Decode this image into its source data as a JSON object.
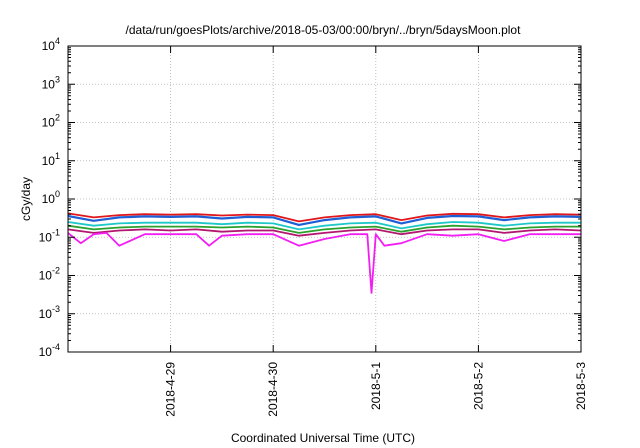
{
  "chart_data": {
    "type": "line",
    "title": "/data/run/goesPlots/archive/2018-05-03/00:00/bryn/../bryn/5daysMoon.plot",
    "xlabel": "Coordinated Universal Time (UTC)",
    "ylabel": "cGy/day",
    "yscale": "log",
    "ylim": [
      0.0001,
      10000
    ],
    "xlim": [
      "2018-04-28T00:00",
      "2018-05-03T00:00"
    ],
    "grid": true,
    "legend": "none",
    "x_tick_labels": [
      "2018-4-29",
      "2018-4-30",
      "2018-5-1",
      "2018-5-2",
      "2018-5-3"
    ],
    "y_ticks": [
      {
        "base": "10",
        "exp": "-4"
      },
      {
        "base": "10",
        "exp": "-3"
      },
      {
        "base": "10",
        "exp": "-2"
      },
      {
        "base": "10",
        "exp": "-1"
      },
      {
        "base": "10",
        "exp": "0"
      },
      {
        "base": "10",
        "exp": "1"
      },
      {
        "base": "10",
        "exp": "2"
      },
      {
        "base": "10",
        "exp": "3"
      },
      {
        "base": "10",
        "exp": "4"
      }
    ],
    "series": [
      {
        "color": "#e0161b",
        "x": [
          "2018-04-28T00:00",
          "2018-04-28T06:00",
          "2018-04-28T12:00",
          "2018-04-28T18:00",
          "2018-04-29T00:00",
          "2018-04-29T06:00",
          "2018-04-29T12:00",
          "2018-04-29T18:00",
          "2018-04-30T00:00",
          "2018-04-30T06:00",
          "2018-04-30T12:00",
          "2018-04-30T18:00",
          "2018-05-01T00:00",
          "2018-05-01T06:00",
          "2018-05-01T12:00",
          "2018-05-01T18:00",
          "2018-05-02T00:00",
          "2018-05-02T06:00",
          "2018-05-02T12:00",
          "2018-05-02T18:00",
          "2018-05-03T00:00"
        ],
        "y": [
          0.42,
          0.33,
          0.38,
          0.4,
          0.39,
          0.4,
          0.37,
          0.39,
          0.38,
          0.26,
          0.33,
          0.38,
          0.4,
          0.28,
          0.37,
          0.41,
          0.4,
          0.33,
          0.38,
          0.4,
          0.39
        ]
      },
      {
        "color": "#1f5fd6",
        "x": [
          "2018-04-28T00:00",
          "2018-04-28T06:00",
          "2018-04-28T12:00",
          "2018-04-28T18:00",
          "2018-04-29T00:00",
          "2018-04-29T06:00",
          "2018-04-29T12:00",
          "2018-04-29T18:00",
          "2018-04-30T00:00",
          "2018-04-30T06:00",
          "2018-04-30T12:00",
          "2018-04-30T18:00",
          "2018-05-01T00:00",
          "2018-05-01T06:00",
          "2018-05-01T12:00",
          "2018-05-01T18:00",
          "2018-05-02T00:00",
          "2018-05-02T06:00",
          "2018-05-02T12:00",
          "2018-05-02T18:00",
          "2018-05-03T00:00"
        ],
        "y": [
          0.36,
          0.27,
          0.33,
          0.35,
          0.34,
          0.35,
          0.31,
          0.34,
          0.33,
          0.21,
          0.28,
          0.33,
          0.35,
          0.23,
          0.32,
          0.36,
          0.35,
          0.28,
          0.33,
          0.35,
          0.34
        ]
      },
      {
        "color": "#1ec8c8",
        "x": [
          "2018-04-28T00:00",
          "2018-04-28T06:00",
          "2018-04-28T12:00",
          "2018-04-28T18:00",
          "2018-04-29T00:00",
          "2018-04-29T06:00",
          "2018-04-29T12:00",
          "2018-04-29T18:00",
          "2018-04-30T00:00",
          "2018-04-30T06:00",
          "2018-04-30T12:00",
          "2018-04-30T18:00",
          "2018-05-01T00:00",
          "2018-05-01T06:00",
          "2018-05-01T12:00",
          "2018-05-01T18:00",
          "2018-05-02T00:00",
          "2018-05-02T06:00",
          "2018-05-02T12:00",
          "2018-05-02T18:00",
          "2018-05-03T00:00"
        ],
        "y": [
          0.25,
          0.2,
          0.23,
          0.24,
          0.24,
          0.24,
          0.22,
          0.24,
          0.23,
          0.16,
          0.2,
          0.23,
          0.24,
          0.17,
          0.22,
          0.25,
          0.24,
          0.2,
          0.23,
          0.24,
          0.24
        ]
      },
      {
        "color": "#2ca02c",
        "x": [
          "2018-04-28T00:00",
          "2018-04-28T06:00",
          "2018-04-28T12:00",
          "2018-04-28T18:00",
          "2018-04-29T00:00",
          "2018-04-29T06:00",
          "2018-04-29T12:00",
          "2018-04-29T18:00",
          "2018-04-30T00:00",
          "2018-04-30T06:00",
          "2018-04-30T12:00",
          "2018-04-30T18:00",
          "2018-05-01T00:00",
          "2018-05-01T06:00",
          "2018-05-01T12:00",
          "2018-05-01T18:00",
          "2018-05-02T00:00",
          "2018-05-02T06:00",
          "2018-05-02T12:00",
          "2018-05-02T18:00",
          "2018-05-03T00:00"
        ],
        "y": [
          0.2,
          0.16,
          0.18,
          0.19,
          0.19,
          0.19,
          0.18,
          0.19,
          0.18,
          0.13,
          0.16,
          0.18,
          0.19,
          0.14,
          0.18,
          0.2,
          0.19,
          0.16,
          0.18,
          0.19,
          0.19
        ]
      },
      {
        "color": "#b2166e",
        "x": [
          "2018-04-28T00:00",
          "2018-04-28T06:00",
          "2018-04-28T12:00",
          "2018-04-28T18:00",
          "2018-04-29T00:00",
          "2018-04-29T06:00",
          "2018-04-29T12:00",
          "2018-04-29T18:00",
          "2018-04-30T00:00",
          "2018-04-30T06:00",
          "2018-04-30T12:00",
          "2018-04-30T18:00",
          "2018-05-01T00:00",
          "2018-05-01T06:00",
          "2018-05-01T12:00",
          "2018-05-01T18:00",
          "2018-05-02T00:00",
          "2018-05-02T06:00",
          "2018-05-02T12:00",
          "2018-05-02T18:00",
          "2018-05-03T00:00"
        ],
        "y": [
          0.16,
          0.13,
          0.15,
          0.16,
          0.15,
          0.16,
          0.14,
          0.15,
          0.15,
          0.11,
          0.13,
          0.15,
          0.16,
          0.12,
          0.15,
          0.16,
          0.16,
          0.13,
          0.15,
          0.16,
          0.15
        ]
      },
      {
        "color": "#f21ff2",
        "x": [
          "2018-04-28T00:00",
          "2018-04-28T03:00",
          "2018-04-28T06:00",
          "2018-04-28T09:00",
          "2018-04-28T12:00",
          "2018-04-28T18:00",
          "2018-04-29T00:00",
          "2018-04-29T06:00",
          "2018-04-29T09:00",
          "2018-04-29T12:00",
          "2018-04-29T18:00",
          "2018-04-30T00:00",
          "2018-04-30T06:00",
          "2018-04-30T12:00",
          "2018-04-30T18:00",
          "2018-04-30T22:00",
          "2018-04-30T23:00",
          "2018-05-01T00:00",
          "2018-05-01T02:00",
          "2018-05-01T06:00",
          "2018-05-01T12:00",
          "2018-05-01T18:00",
          "2018-05-02T00:00",
          "2018-05-02T06:00",
          "2018-05-02T12:00",
          "2018-05-02T18:00",
          "2018-05-03T00:00"
        ],
        "y": [
          0.13,
          0.07,
          0.12,
          0.13,
          0.06,
          0.12,
          0.12,
          0.12,
          0.06,
          0.11,
          0.12,
          0.12,
          0.06,
          0.09,
          0.12,
          0.12,
          0.0035,
          0.12,
          0.06,
          0.07,
          0.12,
          0.11,
          0.12,
          0.08,
          0.12,
          0.12,
          0.12
        ]
      }
    ]
  }
}
